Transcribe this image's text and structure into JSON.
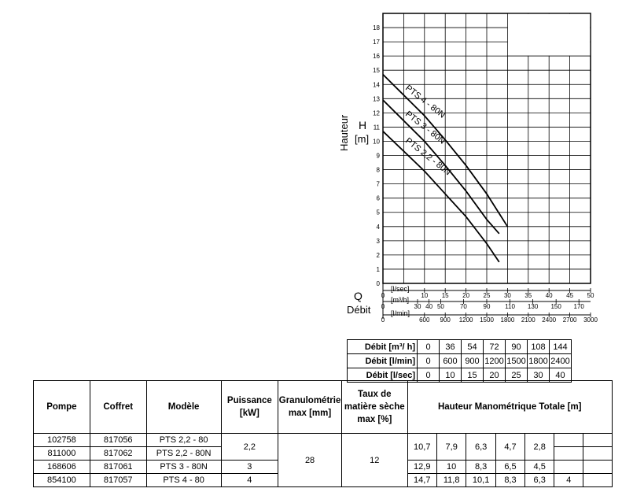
{
  "chart_data": {
    "type": "line",
    "ylabel_word": "Hauteur",
    "ylabel_sym": "H",
    "ylabel_unit": "[m]",
    "x_sym": "Q",
    "x_word": "Débit",
    "ylim": [
      0,
      19
    ],
    "yticks": [
      "0",
      "1",
      "2",
      "3",
      "4",
      "5",
      "6",
      "7",
      "8",
      "9",
      "10",
      "11",
      "12",
      "13",
      "14",
      "15",
      "16",
      "17",
      "18"
    ],
    "axis_ls": {
      "unit": "[l/sec]",
      "ticks": [
        "0",
        "10",
        "15",
        "20",
        "25",
        "30",
        "35",
        "40",
        "45",
        "50"
      ]
    },
    "axis_m3h": {
      "unit": "[m³/h]",
      "ticks": [
        "0",
        "30",
        "40",
        "50",
        "70",
        "90",
        "110",
        "130",
        "150",
        "170"
      ]
    },
    "axis_lmin": {
      "unit": "[l/min]",
      "ticks": [
        "0",
        "600",
        "900",
        "1200",
        "1500",
        "1800",
        "2100",
        "2400",
        "2700",
        "3000"
      ]
    },
    "xlim": [
      0,
      50
    ],
    "series": [
      {
        "name": "PTS 4 - 80N",
        "x": [
          0,
          10,
          15,
          20,
          25,
          30
        ],
        "y": [
          14.7,
          11.8,
          10.1,
          8.3,
          6.3,
          4
        ]
      },
      {
        "name": "PTS 3 - 80N",
        "x": [
          0,
          10,
          15,
          20,
          25,
          28
        ],
        "y": [
          12.9,
          10,
          8.3,
          6.5,
          4.5,
          3.5
        ]
      },
      {
        "name": "PTS 2,2 - 80N",
        "x": [
          0,
          10,
          15,
          20,
          25,
          28
        ],
        "y": [
          10.7,
          7.9,
          6.3,
          4.7,
          2.8,
          1.5
        ]
      }
    ]
  },
  "flow_table": {
    "rows": [
      {
        "label": "Débit [m³/ h]",
        "values": [
          "0",
          "36",
          "54",
          "72",
          "90",
          "108",
          "144"
        ]
      },
      {
        "label": "Débit [l/min]",
        "values": [
          "0",
          "600",
          "900",
          "1200",
          "1500",
          "1800",
          "2400"
        ]
      },
      {
        "label": "Débit [l/sec]",
        "values": [
          "0",
          "10",
          "15",
          "20",
          "25",
          "30",
          "40"
        ]
      }
    ]
  },
  "main_table": {
    "headers": {
      "pompe": "Pompe",
      "coffret": "Coffret",
      "modele": "Modèle",
      "puissance": "Puissance [kW]",
      "granulo": "Granulométrie max [mm]",
      "taux": "Taux de matière sèche max [%]",
      "hmt": "Hauteur Manométrique Totale [m]"
    },
    "rows": [
      {
        "pompe": "102758",
        "coffret": "817056",
        "modele": "PTS 2,2 - 80"
      },
      {
        "pompe": "811000",
        "coffret": "817062",
        "modele": "PTS 2,2 - 80N"
      },
      {
        "pompe": "168606",
        "coffret": "817061",
        "modele": "PTS 3 - 80N"
      },
      {
        "pompe": "854100",
        "coffret": "817057",
        "modele": "PTS 4 - 80"
      }
    ],
    "puissance": [
      "2,2",
      "3",
      "4"
    ],
    "granulo": "28",
    "taux": "12",
    "hmt": [
      [
        "10,7",
        "7,9",
        "6,3",
        "4,7",
        "2,8",
        "",
        ""
      ],
      [
        "12,9",
        "10",
        "8,3",
        "6,5",
        "4,5",
        "",
        ""
      ],
      [
        "14,7",
        "11,8",
        "10,1",
        "8,3",
        "6,3",
        "4",
        ""
      ]
    ]
  }
}
